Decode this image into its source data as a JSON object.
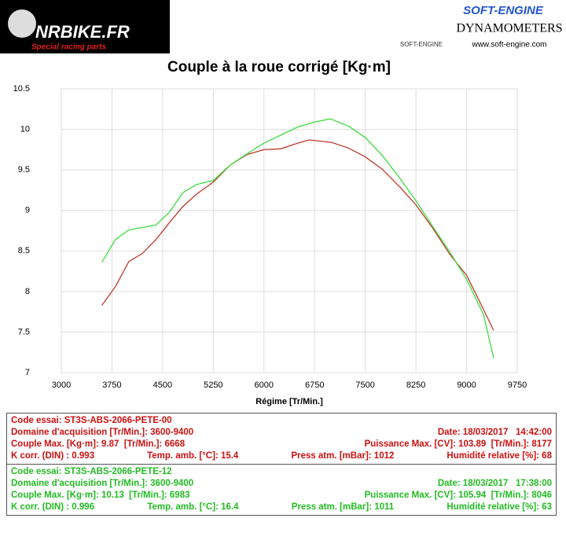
{
  "header": {
    "left_logo": "NRBIKE.FR",
    "left_tagline": "Special racing parts",
    "right_brand": "SOFT-ENGINE",
    "right_small": "SOFT-ENGINE",
    "right_title": "DYNAMOMETERS",
    "right_url": "www.soft-engine.com"
  },
  "chart_data": {
    "type": "line",
    "title": "Couple à la roue corrigé [Kg·m]",
    "x_label": "Régime [Tr/Min.]",
    "xlim": [
      3000,
      9750
    ],
    "xticks": [
      3000,
      3750,
      4500,
      5250,
      6000,
      6750,
      7500,
      8250,
      9000,
      9750
    ],
    "ylim": [
      7,
      10.5
    ],
    "yticks": [
      7,
      7.5,
      8,
      8.5,
      9,
      9.5,
      10,
      10.5
    ],
    "grid": true,
    "series": [
      {
        "color": "#c0392b",
        "x": [
          3600,
          3800,
          4000,
          4200,
          4400,
          4600,
          4800,
          5000,
          5250,
          5500,
          5750,
          6000,
          6250,
          6500,
          6668,
          7000,
          7250,
          7500,
          7750,
          8000,
          8250,
          8500,
          8750,
          9000,
          9250,
          9400
        ],
        "values": [
          7.83,
          8.06,
          8.37,
          8.47,
          8.64,
          8.85,
          9.05,
          9.2,
          9.35,
          9.56,
          9.69,
          9.75,
          9.76,
          9.83,
          9.87,
          9.84,
          9.77,
          9.66,
          9.51,
          9.3,
          9.07,
          8.78,
          8.46,
          8.2,
          7.78,
          7.52
        ]
      },
      {
        "color": "#3ddc3d",
        "x": [
          3600,
          3800,
          4000,
          4200,
          4400,
          4600,
          4800,
          5000,
          5250,
          5500,
          5750,
          6000,
          6250,
          6500,
          6750,
          6983,
          7250,
          7500,
          7750,
          8000,
          8250,
          8500,
          8750,
          9000,
          9250,
          9400
        ],
        "values": [
          8.36,
          8.64,
          8.76,
          8.79,
          8.82,
          8.98,
          9.22,
          9.32,
          9.37,
          9.56,
          9.7,
          9.83,
          9.93,
          10.03,
          10.09,
          10.13,
          10.04,
          9.9,
          9.68,
          9.41,
          9.12,
          8.8,
          8.49,
          8.15,
          7.72,
          7.18
        ]
      }
    ]
  },
  "info_boxes": [
    {
      "color": "#cc1111",
      "lines": [
        [
          "Code essai: ST3S-ABS-2066-PETE-00"
        ],
        [
          "Domaine d'acquisition [Tr/Min.]: 3600-9400",
          "Date: 18/03/2017   14:42:00"
        ],
        [
          "Couple Max. [Kg·m]: 9.87  [Tr/Min.]: 6668",
          "Puissance Max. [CV]: 103.89  [Tr/Min.]: 8177"
        ],
        [
          "K corr. (DIN) : 0.993",
          "Temp. amb. [°C]: 15.4",
          "Press atm. [mBar]: 1012",
          "Humidité relative [%]: 68"
        ]
      ]
    },
    {
      "color": "#22bb22",
      "lines": [
        [
          "Code essai: ST3S-ABS-2066-PETE-12"
        ],
        [
          "Domaine d'acquisition [Tr/Min.]: 3600-9400",
          "Date: 18/03/2017   17:38:00"
        ],
        [
          "Couple Max. [Kg·m]: 10.13  [Tr/Min.]: 6983",
          "Puissance Max. [CV]: 105.94  [Tr/Min.]: 8046"
        ],
        [
          "K corr. (DIN) : 0.996",
          "Temp. amb. [°C]: 16.4",
          "Press atm. [mBar]: 1011",
          "Humidité relative [%]: 63"
        ]
      ]
    }
  ]
}
